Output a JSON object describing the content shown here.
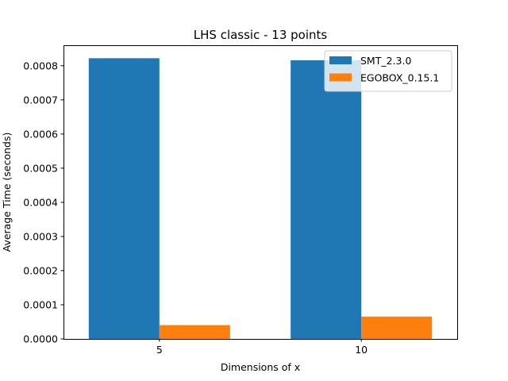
{
  "chart_data": {
    "type": "bar",
    "title": "LHS classic - 13 points",
    "xlabel": "Dimensions of x",
    "ylabel": "Average Time (seconds)",
    "categories": [
      "5",
      "10"
    ],
    "series": [
      {
        "name": "SMT_2.3.0",
        "color": "#1f77b4",
        "values": [
          0.000822,
          0.000816
        ]
      },
      {
        "name": "EGOBOX_0.15.1",
        "color": "#ff7f0e",
        "values": [
          4.05e-05,
          6.55e-05
        ]
      }
    ],
    "ylim": [
      0,
      0.00086
    ],
    "yticks": [
      "0.0000",
      "0.0001",
      "0.0002",
      "0.0003",
      "0.0004",
      "0.0005",
      "0.0006",
      "0.0007",
      "0.0008"
    ],
    "ytick_values": [
      0,
      0.0001,
      0.0002,
      0.0003,
      0.0004,
      0.0005,
      0.0006,
      0.0007,
      0.0008
    ],
    "grid": false,
    "legend_position": "top-right"
  }
}
